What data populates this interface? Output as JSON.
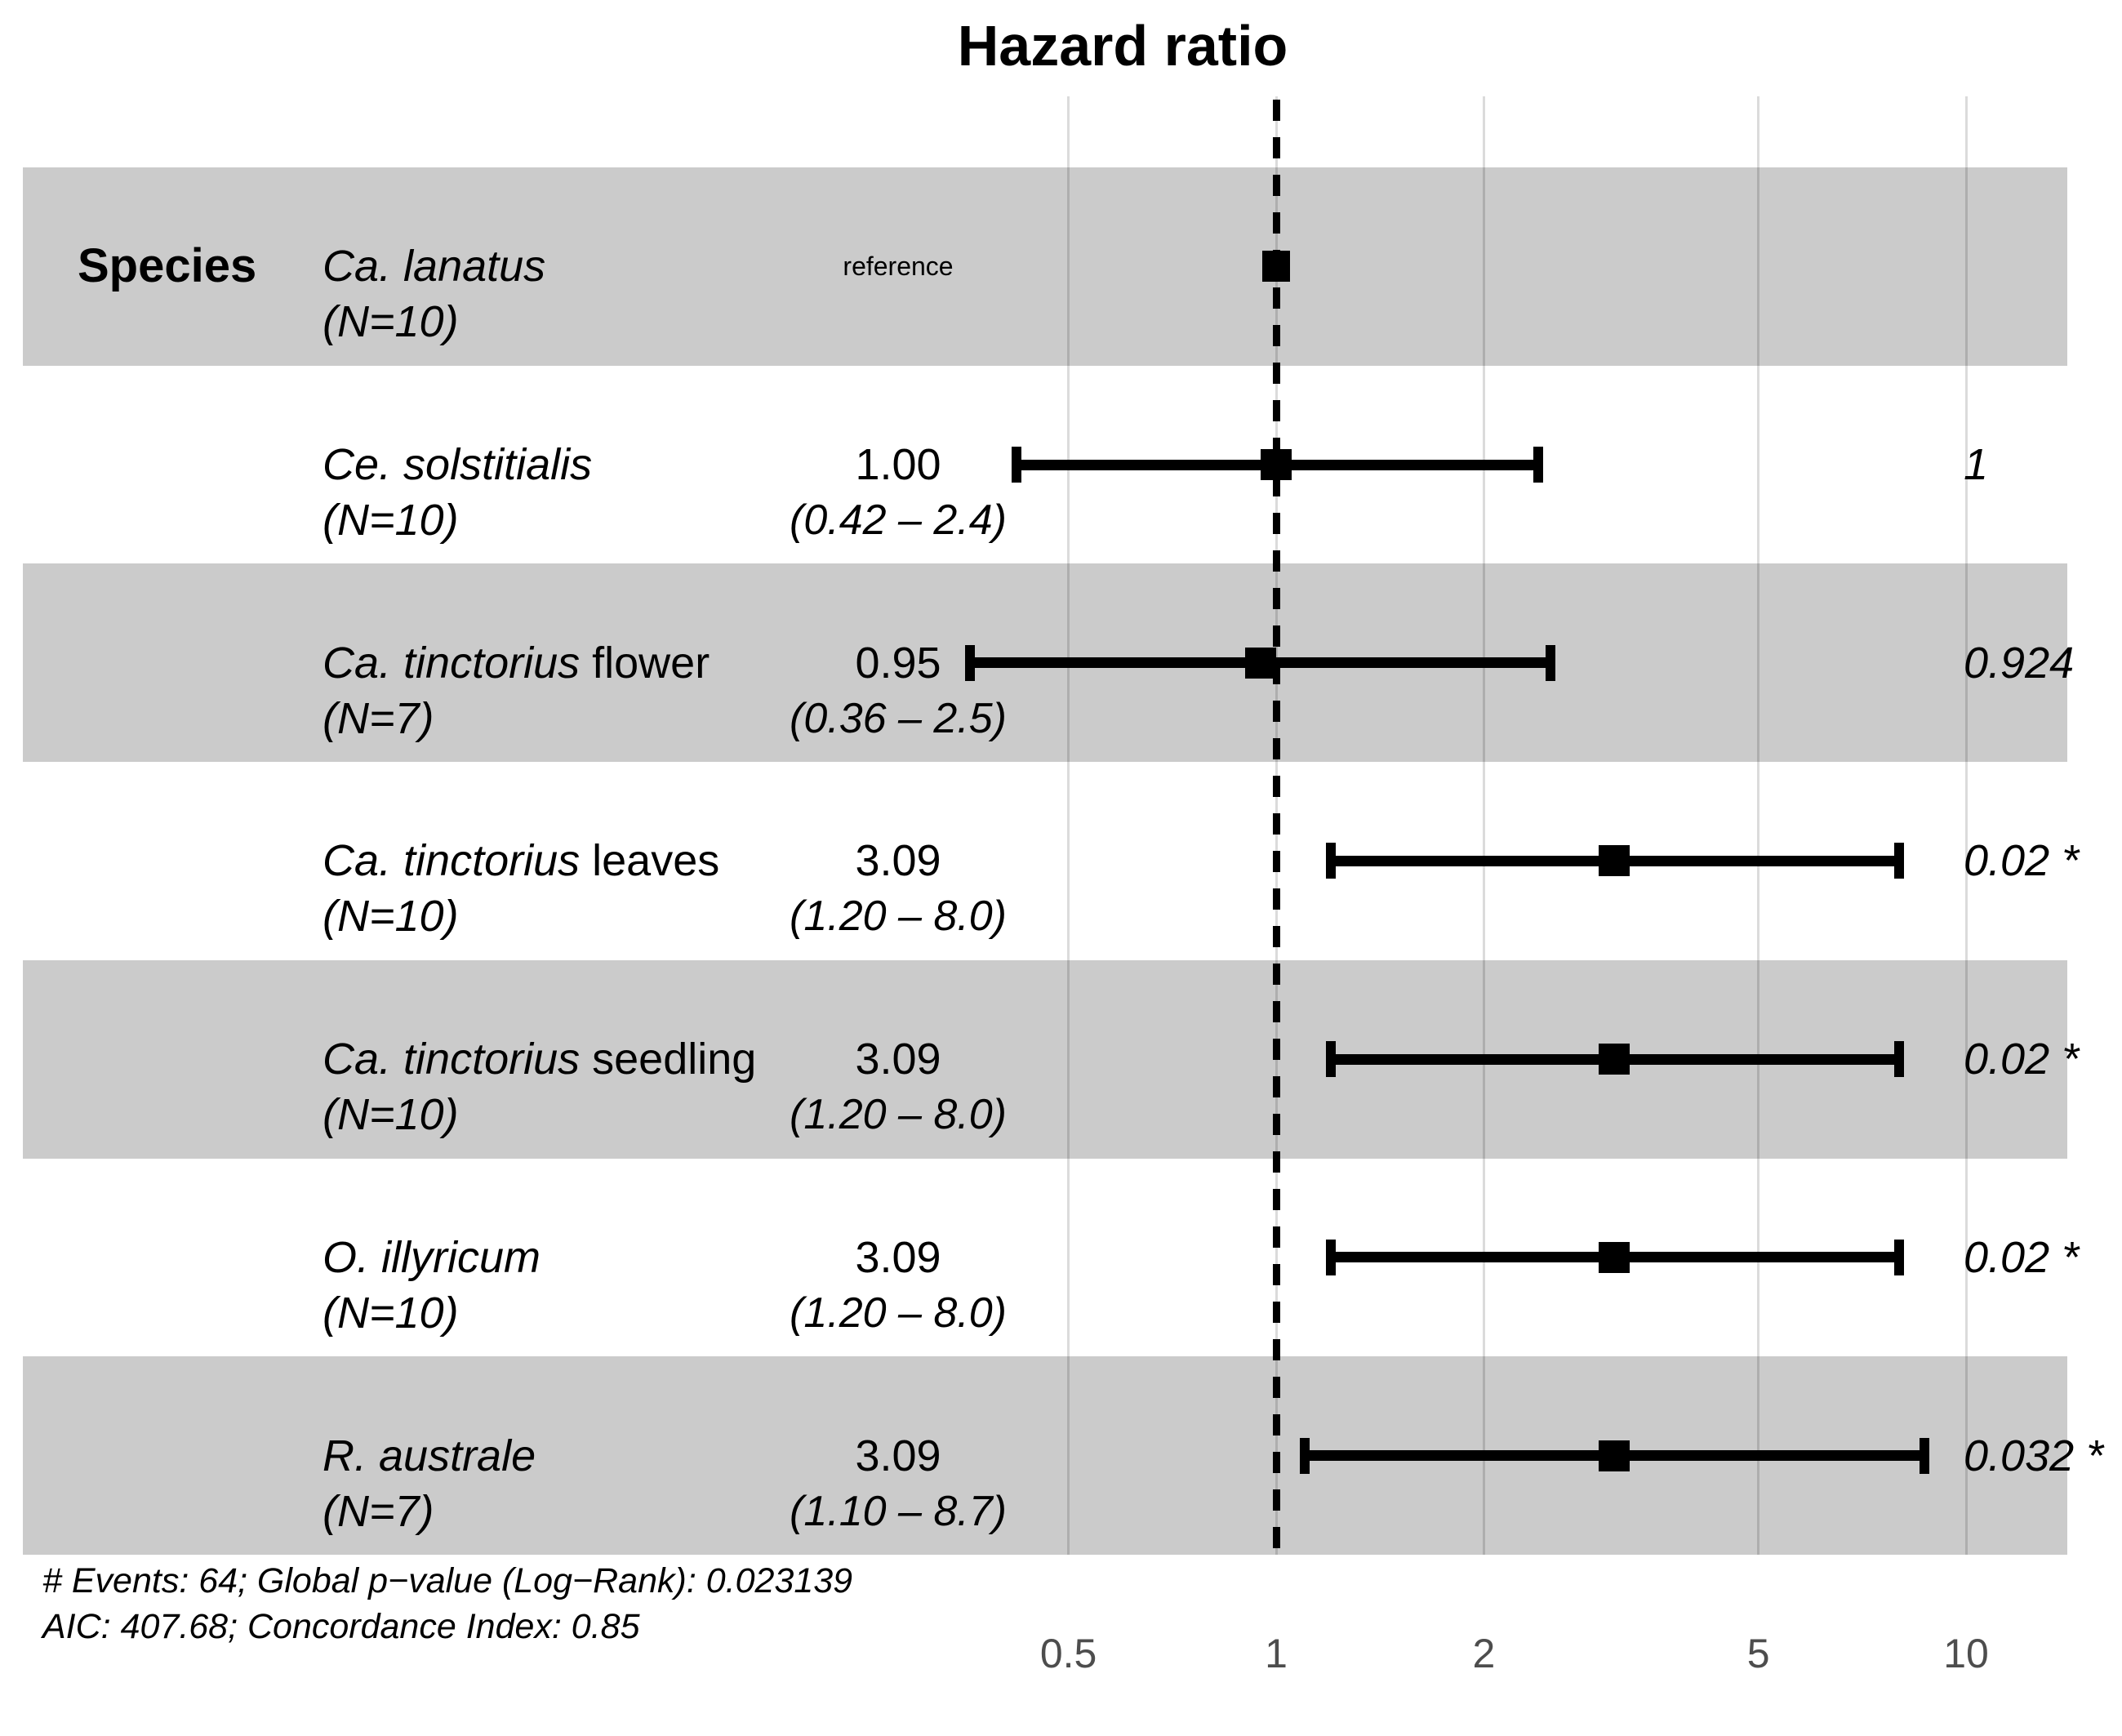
{
  "title": "Hazard ratio",
  "column_header": "Species",
  "footer": {
    "line1": "# Events: 64; Global p−value (Log−Rank): 0.023139",
    "line2": "AIC: 407.68; Concordance Index: 0.85"
  },
  "colors": {
    "band": "#cbcbcb",
    "grid": "#d9d9d9",
    "tick_label": "#4d4d4d",
    "marker": "#000000",
    "background": "#ffffff"
  },
  "chart_data": {
    "type": "forest",
    "title": "Hazard ratio",
    "x_scale": "log10",
    "x_ticks": [
      "0.5",
      "1",
      "2",
      "5",
      "10"
    ],
    "x_tick_values": [
      0.5,
      1,
      2,
      5,
      10
    ],
    "x_range": [
      0.35,
      12.5
    ],
    "reference_line": 1,
    "grid": true,
    "rows": [
      {
        "name_italic": "Ca. lanatus",
        "name_plain": "",
        "n_label": "(N=10)",
        "estimate_label": "reference",
        "is_reference": true,
        "hr": 1.0,
        "ci_low": null,
        "ci_high": null,
        "ci_label": "",
        "p_label": "",
        "shaded": true
      },
      {
        "name_italic": "Ce. solstitialis",
        "name_plain": "",
        "n_label": "(N=10)",
        "estimate_label": "1.00",
        "is_reference": false,
        "hr": 1.0,
        "ci_low": 0.42,
        "ci_high": 2.4,
        "ci_label": "(0.42 – 2.4)",
        "p_label": "1",
        "shaded": false
      },
      {
        "name_italic": "Ca. tinctorius",
        "name_plain": " flower",
        "n_label": "(N=7)",
        "estimate_label": "0.95",
        "is_reference": false,
        "hr": 0.95,
        "ci_low": 0.36,
        "ci_high": 2.5,
        "ci_label": "(0.36 – 2.5)",
        "p_label": "0.924",
        "shaded": true
      },
      {
        "name_italic": "Ca. tinctorius",
        "name_plain": " leaves",
        "n_label": "(N=10)",
        "estimate_label": "3.09",
        "is_reference": false,
        "hr": 3.09,
        "ci_low": 1.2,
        "ci_high": 8.0,
        "ci_label": "(1.20 – 8.0)",
        "p_label": "0.02 *",
        "shaded": false
      },
      {
        "name_italic": "Ca. tinctorius",
        "name_plain": " seedling",
        "n_label": "(N=10)",
        "estimate_label": "3.09",
        "is_reference": false,
        "hr": 3.09,
        "ci_low": 1.2,
        "ci_high": 8.0,
        "ci_label": "(1.20 – 8.0)",
        "p_label": "0.02 *",
        "shaded": true
      },
      {
        "name_italic": "O. illyricum",
        "name_plain": "",
        "n_label": "(N=10)",
        "estimate_label": "3.09",
        "is_reference": false,
        "hr": 3.09,
        "ci_low": 1.2,
        "ci_high": 8.0,
        "ci_label": "(1.20 – 8.0)",
        "p_label": "0.02 *",
        "shaded": false
      },
      {
        "name_italic": "R. australe",
        "name_plain": "",
        "n_label": "(N=7)",
        "estimate_label": "3.09",
        "is_reference": false,
        "hr": 3.09,
        "ci_low": 1.1,
        "ci_high": 8.7,
        "ci_label": "(1.10 – 8.7)",
        "p_label": "0.032 *",
        "shaded": true
      }
    ]
  }
}
